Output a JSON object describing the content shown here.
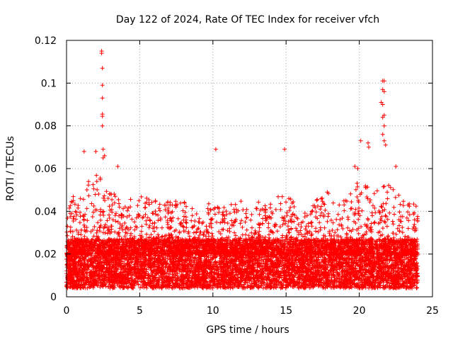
{
  "chart_data": {
    "type": "scatter",
    "title": "Day 122 of 2024, Rate Of TEC Index for receiver vfch",
    "xlabel": "GPS time / hours",
    "ylabel": "ROTI / TECUs",
    "xlim": [
      0,
      25
    ],
    "ylim": [
      0,
      0.12
    ],
    "x_ticks": [
      0,
      5,
      10,
      15,
      20,
      25
    ],
    "x_tick_labels": [
      "0",
      "5",
      "10",
      "15",
      "20",
      "25"
    ],
    "y_ticks": [
      0,
      0.02,
      0.04,
      0.06,
      0.08,
      0.1,
      0.12
    ],
    "y_tick_labels": [
      "0",
      "0.02",
      "0.04",
      "0.06",
      "0.08",
      "0.1",
      "0.12"
    ],
    "grid": true,
    "marker": "+",
    "color": "#ff0000",
    "data_extent_hours": [
      0,
      24
    ],
    "dense_band": {
      "typical_min": 0.008,
      "typical_max": 0.025
    },
    "level_profile": {
      "hours": [
        0,
        1,
        2,
        3,
        4,
        5,
        6,
        7,
        8,
        9,
        10,
        11,
        12,
        13,
        14,
        15,
        16,
        17,
        18,
        19,
        20,
        21,
        22,
        23,
        24
      ],
      "upper_envelope": [
        0.045,
        0.05,
        0.058,
        0.05,
        0.045,
        0.05,
        0.045,
        0.045,
        0.045,
        0.04,
        0.045,
        0.045,
        0.045,
        0.045,
        0.045,
        0.05,
        0.04,
        0.045,
        0.05,
        0.045,
        0.055,
        0.05,
        0.055,
        0.045,
        0.045
      ]
    },
    "highlighted_points": [
      {
        "x": 2.4,
        "y": 0.115
      },
      {
        "x": 2.4,
        "y": 0.114
      },
      {
        "x": 2.45,
        "y": 0.107
      },
      {
        "x": 2.45,
        "y": 0.099
      },
      {
        "x": 2.45,
        "y": 0.093
      },
      {
        "x": 2.45,
        "y": 0.0855
      },
      {
        "x": 2.45,
        "y": 0.0845
      },
      {
        "x": 2.45,
        "y": 0.08
      },
      {
        "x": 1.2,
        "y": 0.068
      },
      {
        "x": 2.0,
        "y": 0.068
      },
      {
        "x": 2.5,
        "y": 0.069
      },
      {
        "x": 2.6,
        "y": 0.066
      },
      {
        "x": 2.5,
        "y": 0.065
      },
      {
        "x": 3.5,
        "y": 0.061
      },
      {
        "x": 10.2,
        "y": 0.069
      },
      {
        "x": 14.9,
        "y": 0.069
      },
      {
        "x": 20.1,
        "y": 0.073
      },
      {
        "x": 20.6,
        "y": 0.072
      },
      {
        "x": 20.65,
        "y": 0.07
      },
      {
        "x": 21.6,
        "y": 0.101
      },
      {
        "x": 21.7,
        "y": 0.101
      },
      {
        "x": 21.6,
        "y": 0.097
      },
      {
        "x": 21.7,
        "y": 0.096
      },
      {
        "x": 21.5,
        "y": 0.091
      },
      {
        "x": 21.6,
        "y": 0.09
      },
      {
        "x": 21.7,
        "y": 0.085
      },
      {
        "x": 21.6,
        "y": 0.084
      },
      {
        "x": 21.7,
        "y": 0.08
      },
      {
        "x": 21.6,
        "y": 0.076
      },
      {
        "x": 21.7,
        "y": 0.073
      },
      {
        "x": 21.8,
        "y": 0.071
      },
      {
        "x": 22.5,
        "y": 0.061
      },
      {
        "x": 19.7,
        "y": 0.061
      },
      {
        "x": 19.9,
        "y": 0.06
      }
    ]
  }
}
